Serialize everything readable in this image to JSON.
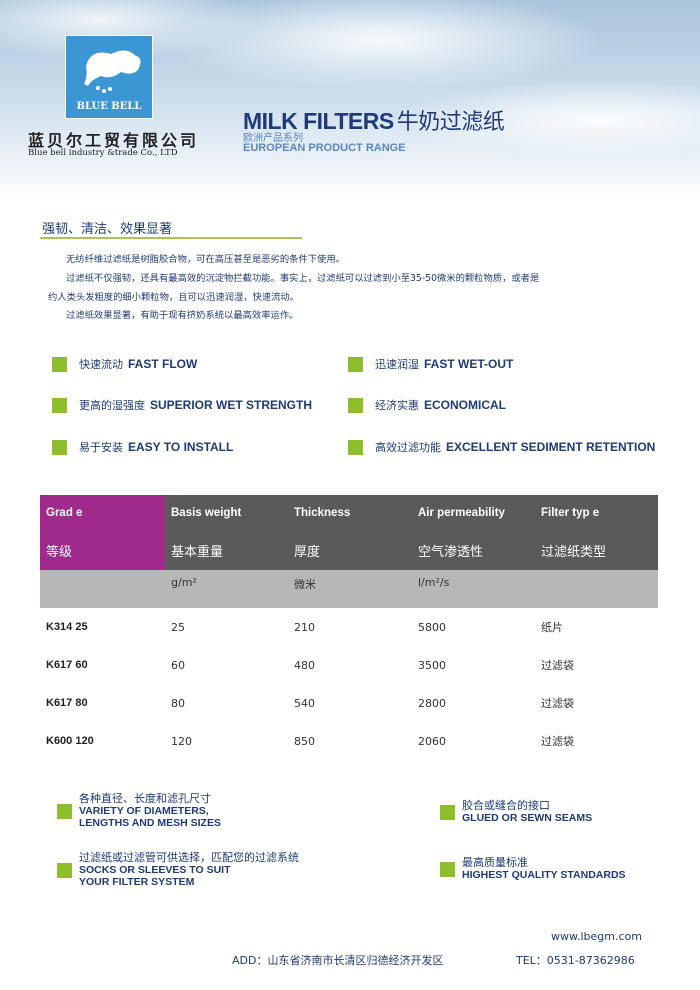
{
  "header": {
    "logo_text": "BLUE BELL",
    "company_cn": "蓝贝尔工贸有限公司",
    "company_en": "Blue bell industry &trade Co., LTD",
    "title_en": "MILK FILTERS",
    "title_cn": "牛奶过滤纸",
    "subtitle_cn": "欧洲产品系列",
    "subtitle_en": "EUROPEAN PRODUCT RANGE"
  },
  "intro": {
    "heading": "强韧、清洁、效果显著",
    "paragraphs": [
      "无纺纤维过滤纸是树脂胶合物，可在高压甚至是恶劣的条件下使用。",
      "过滤纸不仅强韧，还具有最高效的沉淀物拦截功能。事实上，过滤纸可以过滤到小至35-50微米的颗粒物质，或者是",
      "约人类头发粗度的细小颗粒物，且可以迅速润湿，快速流动。",
      "过滤纸效果显著，有助于现有挤奶系统以最高效率运作。"
    ]
  },
  "features": [
    {
      "cn": "快速流动",
      "en": "FAST FLOW"
    },
    {
      "cn": "迅速润湿",
      "en": "FAST WET-OUT"
    },
    {
      "cn": "更高的湿强度",
      "en": "SUPERIOR WET STRENGTH"
    },
    {
      "cn": "经济实惠",
      "en": "ECONOMICAL"
    },
    {
      "cn": "易于安装",
      "en": "EASY TO INSTALL"
    },
    {
      "cn": "高效过滤功能",
      "en": "EXCELLENT SEDIMENT RETENTION"
    }
  ],
  "table": {
    "headers_en": [
      "Grad e",
      "Basis weight",
      "Thickness",
      "Air permeability",
      "Filter typ e"
    ],
    "headers_cn": [
      "等级",
      "基本重量",
      "厚度",
      "空气渗透性",
      "过滤纸类型"
    ],
    "units": [
      "",
      "g/m²",
      "微米",
      "l/m²/s",
      ""
    ],
    "rows": [
      [
        "K314 25",
        "25",
        "210",
        "5800",
        "纸片"
      ],
      [
        "K617 60",
        "60",
        "480",
        "3500",
        "过滤袋"
      ],
      [
        "K617 80",
        "80",
        "540",
        "2800",
        "过滤袋"
      ],
      [
        "K600 120",
        "120",
        "850",
        "2060",
        "过滤袋"
      ]
    ]
  },
  "bottom_features": [
    {
      "cn": "各种直径、长度和滤孔尺寸",
      "en1": "VARIETY OF DIAMETERS,",
      "en2": "LENGTHS AND MESH SIZES"
    },
    {
      "cn": "胶合或缝合的接口",
      "en1": "GLUED OR SEWN SEAMS",
      "en2": ""
    },
    {
      "cn": "过滤纸或过滤管可供选择，匹配您的过滤系统",
      "en1": "SOCKS OR SLEEVES TO SUIT",
      "en2": "YOUR FILTER SYSTEM"
    },
    {
      "cn": "最高质量标准",
      "en1": "HIGHEST QUALITY STANDARDS",
      "en2": ""
    }
  ],
  "footer": {
    "website": "www.lbegm.com",
    "address": "ADD：山东省济南市长清区归德经济开发区",
    "tel": "TEL：0531-87362986"
  },
  "colors": {
    "accent_green": "#8fbe2c",
    "text_blue": "#1e3a78",
    "grade_purple": "#9f2a8c",
    "logo_blue": "#3a97d3"
  }
}
